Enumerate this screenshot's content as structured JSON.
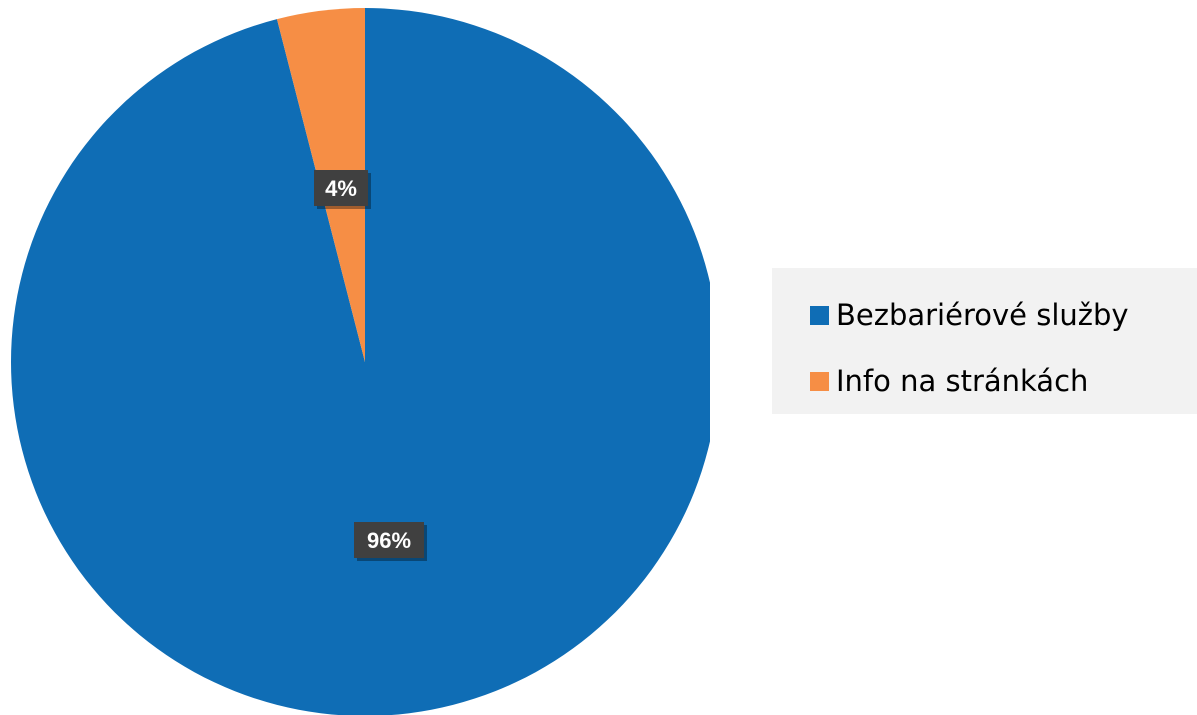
{
  "chart_data": {
    "type": "pie",
    "slices": [
      {
        "label": "Bezbariérové služby",
        "value": 96,
        "data_label": "96%",
        "color": "#0f6db5"
      },
      {
        "label": "Info na stránkách",
        "value": 4,
        "data_label": "4%",
        "color": "#f68e45"
      }
    ],
    "legend_position": "right",
    "start_angle": "12 o'clock",
    "direction": "clockwise"
  }
}
